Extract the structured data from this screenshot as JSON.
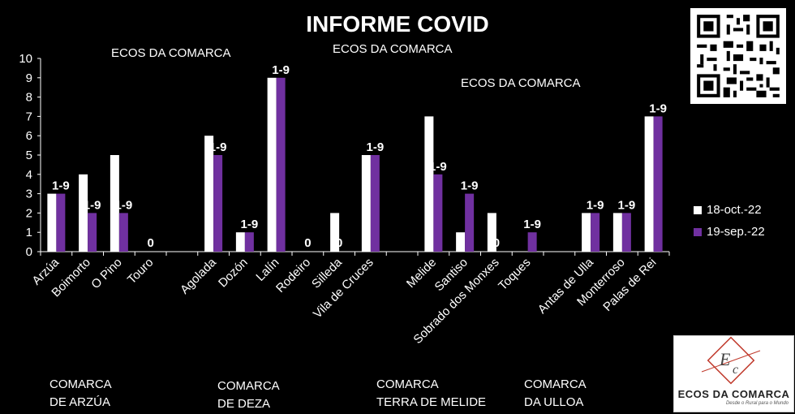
{
  "title": "INFORME COVID",
  "watermarks": [
    "ECOS DA COMARCA",
    "ECOS DA COMARCA",
    "ECOS DA COMARCA"
  ],
  "logo": {
    "text": "ECOS DA COMARCA",
    "tagline": "Desde o Rural para o Mundo"
  },
  "groups": [
    "COMARCA\nDE ARZÚA",
    "COMARCA\nDE DEZA",
    "COMARCA\nTERRA DE MELIDE",
    "COMARCA\nDA ULLOA"
  ],
  "chart_data": {
    "type": "bar",
    "title": "INFORME COVID",
    "categories": [
      "Arzúa",
      "Boimorto",
      "O Pino",
      "Touro",
      "",
      "Agolada",
      "Dozón",
      "Lalín",
      "Rodeiro",
      "Silleda",
      "Vila de Cruces",
      "",
      "Melide",
      "Santiso",
      "Sobrado dos Monxes",
      "Toques",
      "",
      "Antas de Ulla",
      "Monterroso",
      "Palas de Rei"
    ],
    "series": [
      {
        "name": "18-oct.-22",
        "color": "#ffffff",
        "values": [
          3,
          4,
          5,
          0,
          null,
          6,
          1,
          9,
          0,
          2,
          5,
          null,
          7,
          1,
          2,
          0,
          null,
          2,
          2,
          7
        ]
      },
      {
        "name": "19-sep.-22",
        "color": "#7030a0",
        "values": [
          3,
          2,
          2,
          0,
          null,
          5,
          1,
          9,
          0,
          0,
          5,
          null,
          4,
          3,
          0,
          1,
          null,
          2,
          2,
          7
        ]
      }
    ],
    "data_labels": [
      "1-9",
      "1-9",
      "1-9",
      "0",
      null,
      "1-9",
      "1-9",
      "1-9",
      "0",
      "0",
      "1-9",
      null,
      "1-9",
      "1-9",
      "0",
      "1-9",
      null,
      "1-9",
      "1-9",
      "1-9"
    ],
    "ylim": [
      0,
      10
    ],
    "yticks": [
      0,
      1,
      2,
      3,
      4,
      5,
      6,
      7,
      8,
      9,
      10
    ],
    "legend": "right",
    "grid": false
  }
}
